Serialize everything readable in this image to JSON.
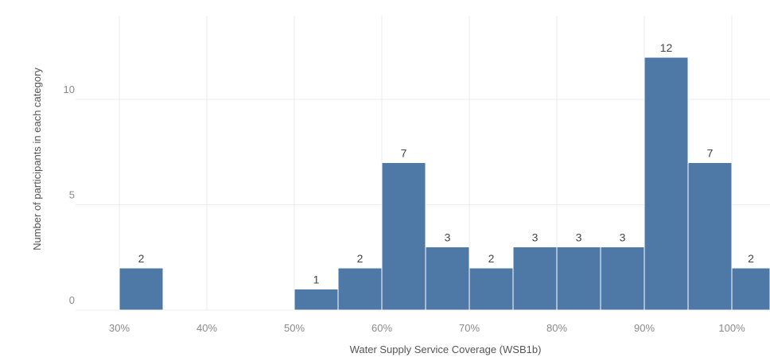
{
  "chart_data": {
    "type": "bar",
    "xlabel": "Water Supply Service Coverage (WSB1b)",
    "ylabel": "Number of participants in each category",
    "x_tick_labels": [
      "30%",
      "40%",
      "50%",
      "60%",
      "70%",
      "80%",
      "90%",
      "100%"
    ],
    "y_tick_labels": [
      "0",
      "5",
      "10"
    ],
    "xlim": [
      25,
      100
    ],
    "ylim": [
      0,
      14
    ],
    "grid": true,
    "bar_color": "#4e79a7",
    "bins": [
      {
        "x_start": 30,
        "x_end": 35,
        "value": 2,
        "label": "2"
      },
      {
        "x_start": 50,
        "x_end": 55,
        "value": 1,
        "label": "1"
      },
      {
        "x_start": 55,
        "x_end": 60,
        "value": 2,
        "label": "2"
      },
      {
        "x_start": 60,
        "x_end": 65,
        "value": 7,
        "label": "7"
      },
      {
        "x_start": 65,
        "x_end": 70,
        "value": 3,
        "label": "3"
      },
      {
        "x_start": 70,
        "x_end": 75,
        "value": 2,
        "label": "2"
      },
      {
        "x_start": 75,
        "x_end": 80,
        "value": 3,
        "label": "3"
      },
      {
        "x_start": 80,
        "x_end": 85,
        "value": 3,
        "label": "3"
      },
      {
        "x_start": 85,
        "x_end": 90,
        "value": 3,
        "label": "3"
      },
      {
        "x_start": 90,
        "x_end": 95,
        "value": 12,
        "label": "12"
      },
      {
        "x_start": 95,
        "x_end": 100,
        "value": 7,
        "label": "7"
      },
      {
        "x_start": 100,
        "x_end": 105,
        "value": 2,
        "label": "2"
      }
    ]
  }
}
